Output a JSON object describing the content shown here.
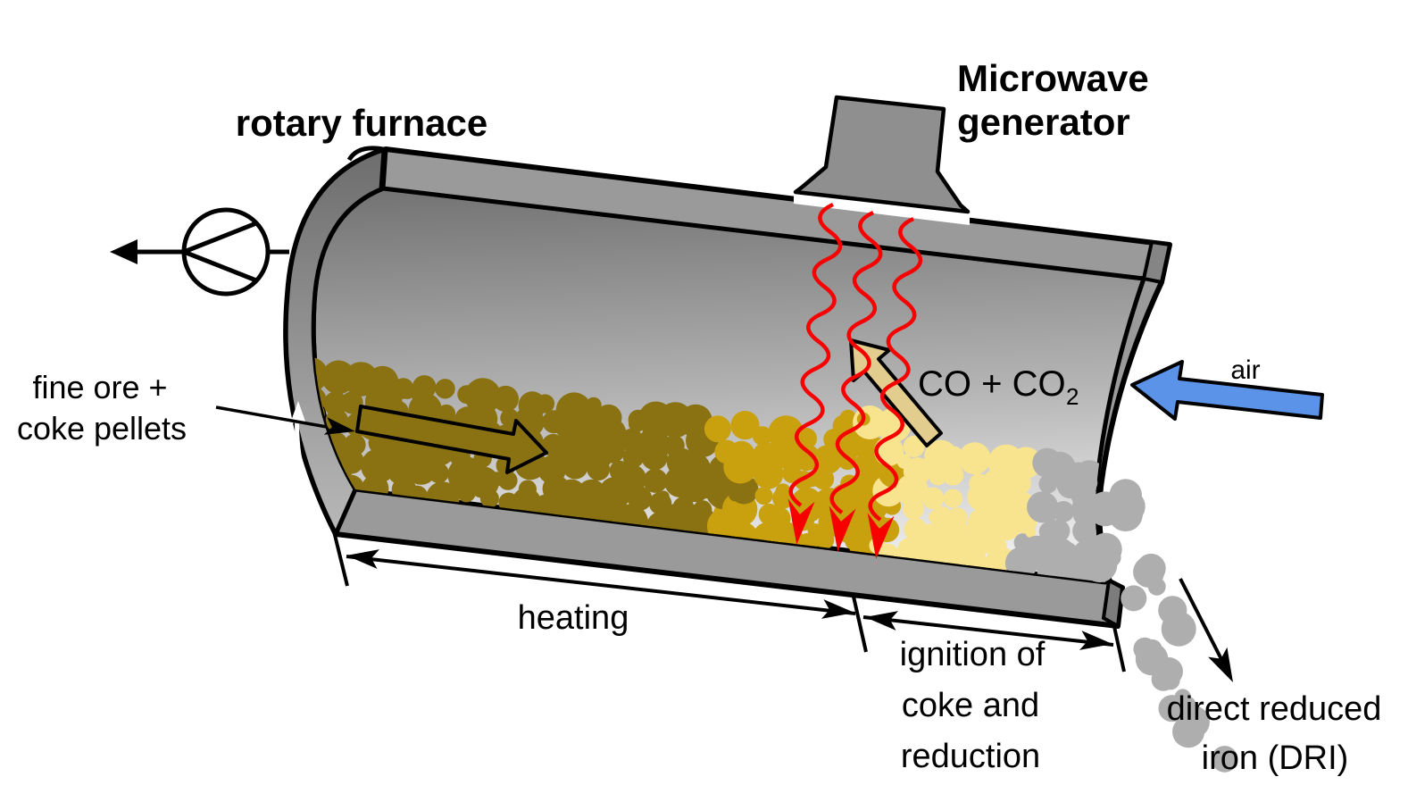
{
  "labels": {
    "title_left": "rotary furnace",
    "generator_line1": "Microwave",
    "generator_line2": "generator",
    "feed_line1": "fine ore +",
    "feed_line2": "coke pellets",
    "zone_heating": "heating",
    "zone_ignition_line1": "ignition of",
    "zone_ignition_line2": "coke and",
    "zone_ignition_line3": "reduction",
    "product_line1": "direct reduced",
    "product_line2": "iron (DRI)",
    "air": "air",
    "offgas_main": "CO + CO",
    "offgas_sub": "2"
  },
  "colors": {
    "pellet_raw": "#8a7212",
    "pellet_heated": "#c9a00e",
    "pellet_ignited": "#f8e48e",
    "pellet_dri": "#aeaeae",
    "flow_arrow": "#8a7212",
    "microwave_red": "#f60000",
    "air_blue": "#5b93e8",
    "co_tan": "#e2cd8f",
    "furnace_band": "#9a9a9a",
    "generator_gray": "#8f8f8f",
    "end_face_gray": "#858585"
  }
}
